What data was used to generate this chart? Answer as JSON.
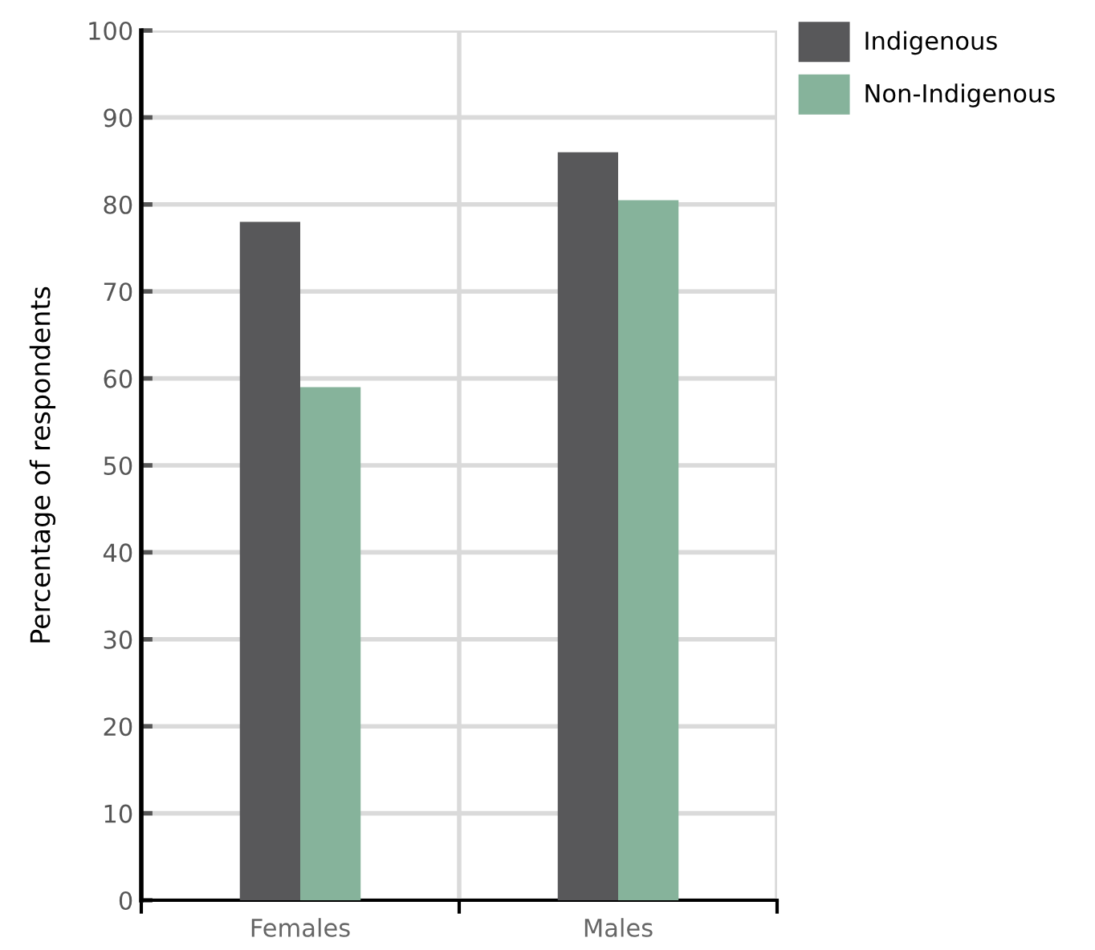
{
  "chart_data": {
    "type": "bar",
    "ylabel": "Percentage of respondents",
    "categories": [
      "Females",
      "Males"
    ],
    "series": [
      {
        "name": "Indigenous",
        "color": "#58585a",
        "values": [
          78,
          86
        ]
      },
      {
        "name": "Non-Indigenous",
        "color": "#86b39b",
        "values": [
          59,
          80.5
        ]
      }
    ],
    "ylim": [
      0,
      100
    ],
    "yticks": [
      0,
      10,
      20,
      30,
      40,
      50,
      60,
      70,
      80,
      90,
      100
    ],
    "grid": true,
    "legend": "top right"
  }
}
